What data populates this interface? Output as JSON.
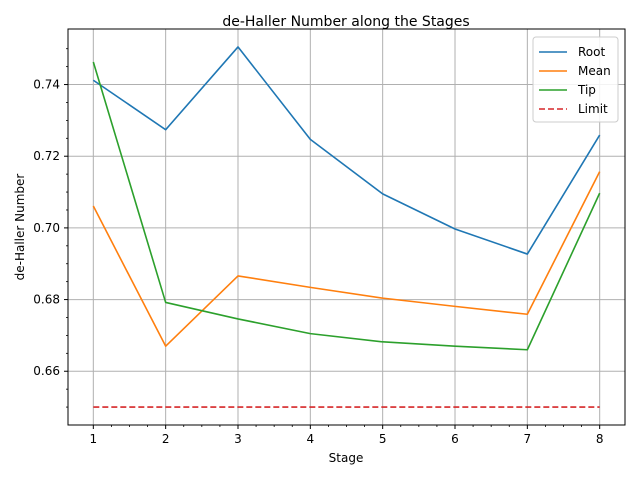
{
  "chart_data": {
    "type": "line",
    "title": "de-Haller Number along the Stages",
    "xlabel": "Stage",
    "ylabel": "de-Haller Number",
    "x": [
      1,
      2,
      3,
      4,
      5,
      6,
      7,
      8
    ],
    "xlim": [
      0.65,
      8.35
    ],
    "ylim": [
      0.645,
      0.7555
    ],
    "xticks": [
      1,
      2,
      3,
      4,
      5,
      6,
      7,
      8
    ],
    "yticks": [
      0.66,
      0.68,
      0.7,
      0.72,
      0.74
    ],
    "ytick_labels": [
      "0.66",
      "0.68",
      "0.70",
      "0.72",
      "0.74"
    ],
    "grid": true,
    "legend_position": "top-right",
    "series": [
      {
        "name": "Root",
        "color": "#1f77b4",
        "dash": "solid",
        "values": [
          0.7412,
          0.7274,
          0.7505,
          0.7247,
          0.7095,
          0.6997,
          0.6927,
          0.7259
        ]
      },
      {
        "name": "Mean",
        "color": "#ff7f0e",
        "dash": "solid",
        "values": [
          0.7061,
          0.667,
          0.6866,
          0.6834,
          0.6804,
          0.6781,
          0.6759,
          0.7157
        ]
      },
      {
        "name": "Tip",
        "color": "#2ca02c",
        "dash": "solid",
        "values": [
          0.7463,
          0.6792,
          0.6746,
          0.6705,
          0.6682,
          0.667,
          0.666,
          0.7097
        ]
      },
      {
        "name": "Limit",
        "color": "#d62728",
        "dash": "dashed",
        "values": [
          0.65,
          0.65,
          0.65,
          0.65,
          0.65,
          0.65,
          0.65,
          0.65
        ]
      }
    ]
  }
}
